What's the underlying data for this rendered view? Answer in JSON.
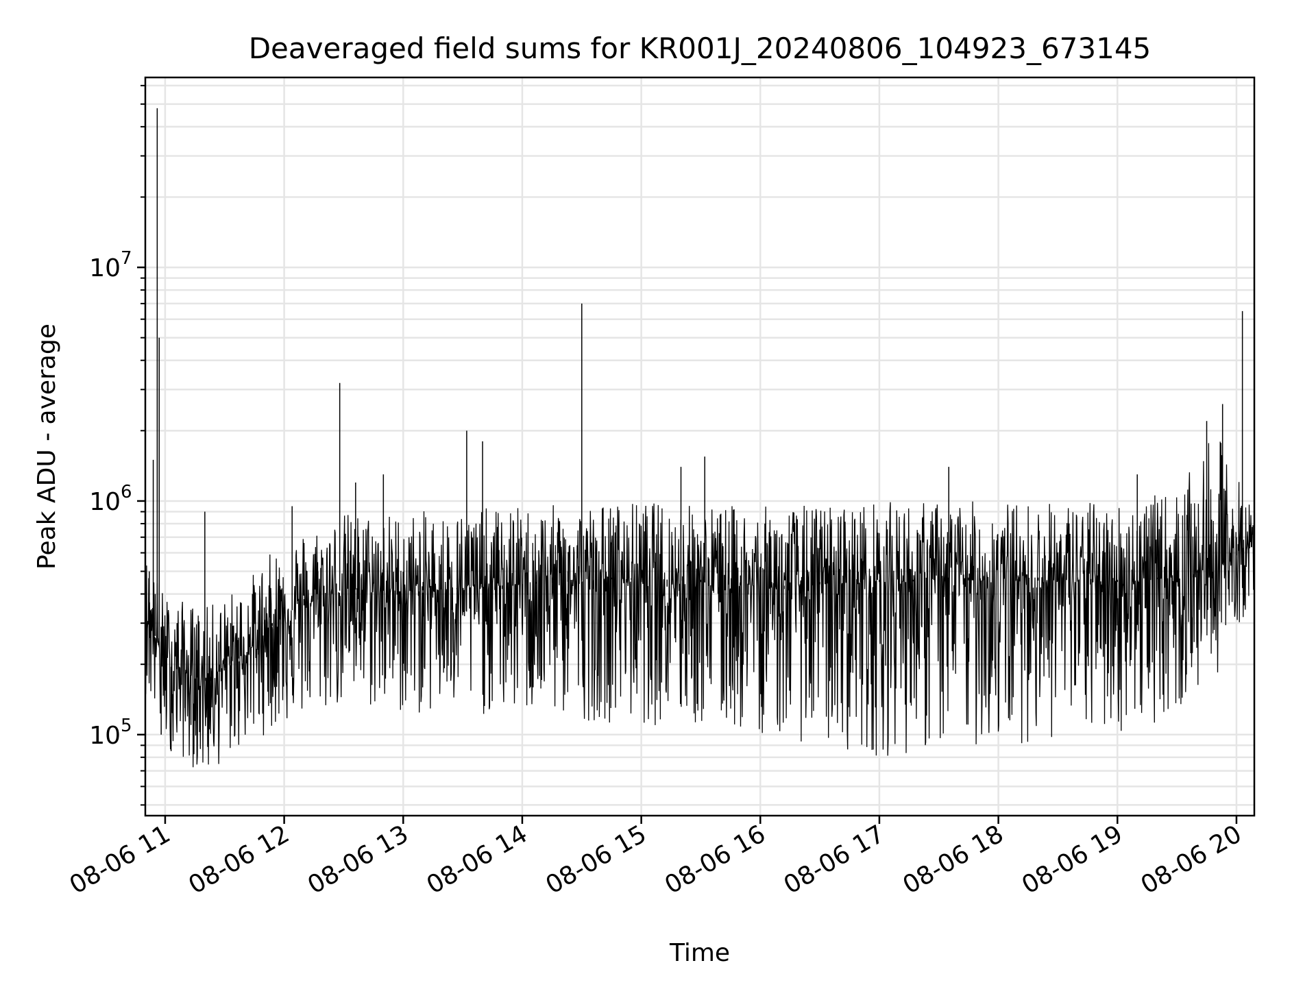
{
  "chart_data": {
    "type": "line",
    "title": "Deaveraged field sums for KR001J_20240806_104923_673145",
    "xlabel": "Time",
    "ylabel": "Peak ADU - average",
    "yscale": "log",
    "grid": true,
    "legend": "none",
    "line_color": "#000000",
    "grid_color": "#e5e5e5",
    "xlim": [
      "2024-08-06 10:50",
      "2024-08-06 20:09"
    ],
    "ylim": [
      45000,
      65000000
    ],
    "x_ticks": [
      {
        "value": "2024-08-06 11:00",
        "label": "08-06 11"
      },
      {
        "value": "2024-08-06 12:00",
        "label": "08-06 12"
      },
      {
        "value": "2024-08-06 13:00",
        "label": "08-06 13"
      },
      {
        "value": "2024-08-06 14:00",
        "label": "08-06 14"
      },
      {
        "value": "2024-08-06 15:00",
        "label": "08-06 15"
      },
      {
        "value": "2024-08-06 16:00",
        "label": "08-06 16"
      },
      {
        "value": "2024-08-06 17:00",
        "label": "08-06 17"
      },
      {
        "value": "2024-08-06 18:00",
        "label": "08-06 18"
      },
      {
        "value": "2024-08-06 19:00",
        "label": "08-06 19"
      },
      {
        "value": "2024-08-06 20:00",
        "label": "08-06 20"
      }
    ],
    "y_ticks": [
      {
        "value": 100000,
        "base": "10",
        "exp": "5"
      },
      {
        "value": 1000000,
        "base": "10",
        "exp": "6"
      },
      {
        "value": 10000000,
        "base": "10",
        "exp": "7"
      }
    ],
    "series": [
      {
        "x": [
          "2024-08-06 10:50",
          "2024-08-06 10:52",
          "2024-08-06 10:53",
          "2024-08-06 10:54",
          "2024-08-06 10:55",
          "2024-08-06 10:56",
          "2024-08-06 10:57",
          "2024-08-06 10:58",
          "2024-08-06 11:00",
          "2024-08-06 11:03",
          "2024-08-06 11:06",
          "2024-08-06 11:10",
          "2024-08-06 11:13",
          "2024-08-06 11:16",
          "2024-08-06 11:20",
          "2024-08-06 11:23",
          "2024-08-06 11:27",
          "2024-08-06 11:30",
          "2024-08-06 11:33",
          "2024-08-06 11:37",
          "2024-08-06 11:40",
          "2024-08-06 11:44",
          "2024-08-06 11:47",
          "2024-08-06 11:50",
          "2024-08-06 11:54",
          "2024-08-06 11:57",
          "2024-08-06 12:00",
          "2024-08-06 12:04",
          "2024-08-06 12:10",
          "2024-08-06 12:17",
          "2024-08-06 12:24",
          "2024-08-06 12:28",
          "2024-08-06 12:31",
          "2024-08-06 12:36",
          "2024-08-06 12:40",
          "2024-08-06 12:50",
          "2024-08-06 12:55",
          "2024-08-06 13:00",
          "2024-08-06 13:10",
          "2024-08-06 13:20",
          "2024-08-06 13:27",
          "2024-08-06 13:32",
          "2024-08-06 13:34",
          "2024-08-06 13:40",
          "2024-08-06 13:45",
          "2024-08-06 13:50",
          "2024-08-06 14:00",
          "2024-08-06 14:07",
          "2024-08-06 14:15",
          "2024-08-06 14:23",
          "2024-08-06 14:27",
          "2024-08-06 14:30",
          "2024-08-06 14:36",
          "2024-08-06 14:45",
          "2024-08-06 14:55",
          "2024-08-06 15:00",
          "2024-08-06 15:10",
          "2024-08-06 15:13",
          "2024-08-06 15:20",
          "2024-08-06 15:30",
          "2024-08-06 15:32",
          "2024-08-06 15:40",
          "2024-08-06 15:50",
          "2024-08-06 16:00",
          "2024-08-06 16:07",
          "2024-08-06 16:12",
          "2024-08-06 16:20",
          "2024-08-06 16:30",
          "2024-08-06 16:40",
          "2024-08-06 16:50",
          "2024-08-06 17:00",
          "2024-08-06 17:12",
          "2024-08-06 17:17",
          "2024-08-06 17:28",
          "2024-08-06 17:35",
          "2024-08-06 17:45",
          "2024-08-06 17:53",
          "2024-08-06 18:00",
          "2024-08-06 18:10",
          "2024-08-06 18:20",
          "2024-08-06 18:30",
          "2024-08-06 18:40",
          "2024-08-06 18:50",
          "2024-08-06 19:00",
          "2024-08-06 19:10",
          "2024-08-06 19:20",
          "2024-08-06 19:30",
          "2024-08-06 19:40",
          "2024-08-06 19:45",
          "2024-08-06 19:50",
          "2024-08-06 19:53",
          "2024-08-06 19:57",
          "2024-08-06 20:00",
          "2024-08-06 20:03",
          "2024-08-06 20:06",
          "2024-08-06 20:09"
        ],
        "y": [
          150000,
          500000,
          300000,
          1500000,
          400000,
          48000000,
          5000000,
          100000,
          200000,
          85000,
          300000,
          130000,
          110000,
          230000,
          900000,
          170000,
          250000,
          200000,
          300000,
          260000,
          180000,
          400000,
          220000,
          350000,
          300000,
          400000,
          350000,
          950000,
          380000,
          500000,
          420000,
          3200000,
          360000,
          1200000,
          420000,
          1300000,
          300000,
          400000,
          450000,
          350000,
          420000,
          2000000,
          400000,
          1800000,
          380000,
          420000,
          400000,
          450000,
          470000,
          500000,
          420000,
          7000000,
          420000,
          470000,
          460000,
          450000,
          470000,
          430000,
          1400000,
          460000,
          1550000,
          450000,
          480000,
          440000,
          460000,
          420000,
          440000,
          450000,
          470000,
          440000,
          460000,
          480000,
          460000,
          490000,
          1400000,
          470000,
          480000,
          460000,
          480000,
          470000,
          500000,
          470000,
          480000,
          460000,
          1300000,
          470000,
          450000,
          500000,
          2200000,
          480000,
          2600000,
          600000,
          700000,
          6500000,
          600000,
          700000
        ]
      }
    ],
    "noise_band": {
      "x": [
        "2024-08-06 10:50",
        "2024-08-06 11:00",
        "2024-08-06 11:20",
        "2024-08-06 11:40",
        "2024-08-06 12:00",
        "2024-08-06 12:30",
        "2024-08-06 13:00",
        "2024-08-06 14:00",
        "2024-08-06 15:00",
        "2024-08-06 16:00",
        "2024-08-06 17:00",
        "2024-08-06 18:00",
        "2024-08-06 19:00",
        "2024-08-06 19:30",
        "2024-08-06 19:50",
        "2024-08-06 20:09"
      ],
      "center": [
        350000,
        200000,
        170000,
        220000,
        330000,
        420000,
        410000,
        440000,
        470000,
        430000,
        450000,
        460000,
        450000,
        470000,
        520000,
        650000
      ],
      "low": [
        150000,
        90000,
        65000,
        90000,
        110000,
        130000,
        120000,
        120000,
        110000,
        100000,
        80000,
        90000,
        100000,
        120000,
        180000,
        400000
      ],
      "high": [
        600000,
        400000,
        350000,
        450000,
        700000,
        900000,
        900000,
        950000,
        1000000,
        950000,
        1000000,
        1000000,
        1000000,
        1100000,
        2000000,
        900000
      ]
    }
  }
}
